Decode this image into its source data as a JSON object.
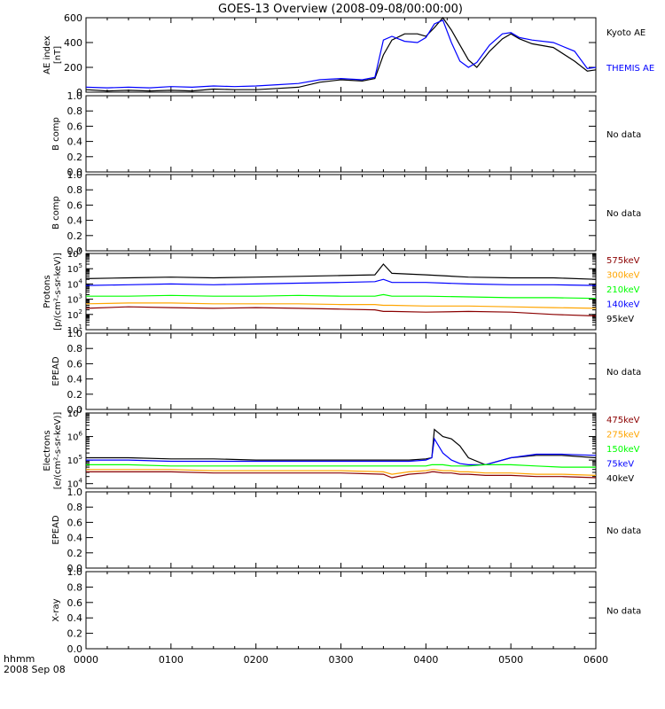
{
  "title": "GOES-13 Overview (2008-09-08/00:00:00)",
  "time_axis": {
    "ticks": [
      "0000",
      "0100",
      "0200",
      "0300",
      "0400",
      "0500",
      "0600"
    ],
    "label_line1": "hhmm",
    "label_line2": "2008 Sep 08"
  },
  "no_data_text": "No data",
  "colors": {
    "black": "#000000",
    "blue": "#0000ff",
    "green": "#00ff00",
    "orange": "#ffa500",
    "darkred": "#8b0000"
  },
  "chart_data": [
    {
      "type": "line",
      "id": "ae",
      "ylabel_lines": [
        "AE index",
        "[nT]"
      ],
      "ylim": [
        0,
        600
      ],
      "yticks": [
        "0",
        "200",
        "400",
        "600"
      ],
      "x_hours": [
        0,
        0.25,
        0.5,
        0.75,
        1.0,
        1.25,
        1.5,
        1.75,
        2.0,
        2.25,
        2.5,
        2.75,
        3.0,
        3.25,
        3.4,
        3.5,
        3.6,
        3.75,
        3.9,
        4.0,
        4.1,
        4.2,
        4.3,
        4.4,
        4.5,
        4.6,
        4.75,
        4.9,
        5.0,
        5.1,
        5.25,
        5.5,
        5.75,
        5.9,
        6.0
      ],
      "series": [
        {
          "name": "Kyoto AE",
          "color": "black",
          "values": [
            20,
            10,
            15,
            10,
            15,
            10,
            25,
            20,
            20,
            30,
            40,
            80,
            100,
            90,
            110,
            300,
            420,
            470,
            470,
            450,
            520,
            600,
            500,
            380,
            260,
            200,
            330,
            430,
            470,
            430,
            390,
            360,
            250,
            170,
            180
          ]
        },
        {
          "name": "THEMIS AE",
          "color": "blue",
          "values": [
            40,
            35,
            40,
            35,
            45,
            40,
            50,
            45,
            50,
            60,
            70,
            100,
            110,
            100,
            120,
            420,
            450,
            410,
            400,
            440,
            550,
            580,
            400,
            250,
            200,
            240,
            380,
            470,
            480,
            440,
            420,
            400,
            330,
            190,
            200
          ]
        }
      ],
      "legend_labels": [
        {
          "text": "Kyoto AE",
          "color": "black"
        },
        {
          "text": "THEMIS AE",
          "color": "blue"
        }
      ]
    },
    {
      "type": "line",
      "id": "bcomp1",
      "ylabel_lines": [
        "B comp"
      ],
      "ylim": [
        0,
        1
      ],
      "yticks": [
        "0.0",
        "0.2",
        "0.4",
        "0.6",
        "0.8",
        "1.0"
      ],
      "series": [],
      "no_data": true
    },
    {
      "type": "line",
      "id": "bcomp2",
      "ylabel_lines": [
        "B comp"
      ],
      "ylim": [
        0,
        1
      ],
      "yticks": [
        "0.0",
        "0.2",
        "0.4",
        "0.6",
        "0.8",
        "1.0"
      ],
      "series": [],
      "no_data": true
    },
    {
      "type": "line",
      "id": "protons",
      "log": true,
      "ylabel_lines": [
        "Protons",
        "[p/(cm²-s-sr-keV)]"
      ],
      "ylim_exp": [
        1,
        6
      ],
      "yticks_exp": [
        1,
        2,
        3,
        4,
        5,
        6
      ],
      "x_hours": [
        0,
        0.5,
        1.0,
        1.5,
        2.0,
        2.5,
        3.0,
        3.4,
        3.5,
        3.6,
        4.0,
        4.5,
        5.0,
        5.5,
        6.0
      ],
      "series": [
        {
          "name": "95keV",
          "color": "black",
          "values_exp": [
            4.35,
            4.4,
            4.45,
            4.4,
            4.45,
            4.5,
            4.55,
            4.6,
            5.3,
            4.7,
            4.6,
            4.45,
            4.4,
            4.4,
            4.3
          ]
        },
        {
          "name": "140keV",
          "color": "blue",
          "values_exp": [
            3.9,
            3.95,
            4.0,
            3.95,
            4.0,
            4.05,
            4.1,
            4.15,
            4.3,
            4.1,
            4.1,
            4.0,
            3.95,
            3.95,
            3.9
          ]
        },
        {
          "name": "210keV",
          "color": "green",
          "values_exp": [
            3.2,
            3.2,
            3.25,
            3.2,
            3.2,
            3.25,
            3.2,
            3.2,
            3.3,
            3.2,
            3.2,
            3.15,
            3.1,
            3.1,
            3.05
          ]
        },
        {
          "name": "300keV",
          "color": "orange",
          "values_exp": [
            2.7,
            2.75,
            2.75,
            2.7,
            2.7,
            2.7,
            2.65,
            2.65,
            2.6,
            2.6,
            2.55,
            2.55,
            2.5,
            2.45,
            2.4
          ]
        },
        {
          "name": "575keV",
          "color": "darkred",
          "values_exp": [
            2.4,
            2.5,
            2.45,
            2.4,
            2.45,
            2.4,
            2.35,
            2.3,
            2.2,
            2.2,
            2.15,
            2.2,
            2.15,
            2.0,
            1.9
          ]
        }
      ],
      "legend_labels": [
        {
          "text": "575keV",
          "color": "darkred"
        },
        {
          "text": "300keV",
          "color": "orange"
        },
        {
          "text": "210keV",
          "color": "green"
        },
        {
          "text": "140keV",
          "color": "blue"
        },
        {
          "text": "95keV",
          "color": "black"
        }
      ]
    },
    {
      "type": "line",
      "id": "epead1",
      "ylabel_lines": [
        "EPEAD"
      ],
      "ylim": [
        0,
        1
      ],
      "yticks": [
        "0.0",
        "0.2",
        "0.4",
        "0.6",
        "0.8",
        "1.0"
      ],
      "series": [],
      "no_data": true
    },
    {
      "type": "line",
      "id": "electrons",
      "log": true,
      "ylabel_lines": [
        "Electrons",
        "[e/(cm²-s-sr-keV)]"
      ],
      "ylim_exp": [
        3.8,
        7
      ],
      "yticks_exp": [
        4,
        5,
        6,
        7
      ],
      "x_hours": [
        0,
        0.5,
        1.0,
        1.5,
        2.0,
        2.5,
        3.0,
        3.5,
        3.6,
        3.8,
        4.0,
        4.07,
        4.1,
        4.2,
        4.3,
        4.4,
        4.5,
        4.7,
        5.0,
        5.3,
        5.6,
        6.0
      ],
      "series": [
        {
          "name": "40keV",
          "color": "black",
          "values_exp": [
            5.1,
            5.1,
            5.05,
            5.05,
            5.0,
            5.0,
            5.0,
            5.0,
            5.0,
            5.0,
            5.05,
            5.1,
            6.3,
            6.0,
            5.9,
            5.6,
            5.1,
            4.8,
            5.1,
            5.2,
            5.2,
            5.1
          ]
        },
        {
          "name": "75keV",
          "color": "blue",
          "values_exp": [
            5.0,
            5.0,
            4.95,
            4.95,
            4.95,
            4.95,
            4.95,
            4.95,
            4.95,
            4.95,
            5.0,
            5.1,
            5.9,
            5.3,
            5.0,
            4.85,
            4.8,
            4.8,
            5.1,
            5.25,
            5.25,
            5.2
          ]
        },
        {
          "name": "150keV",
          "color": "green",
          "values_exp": [
            4.8,
            4.8,
            4.75,
            4.75,
            4.75,
            4.75,
            4.75,
            4.75,
            4.75,
            4.75,
            4.75,
            4.8,
            4.8,
            4.8,
            4.75,
            4.75,
            4.75,
            4.8,
            4.8,
            4.75,
            4.7,
            4.7
          ]
        },
        {
          "name": "275keV",
          "color": "orange",
          "values_exp": [
            4.6,
            4.6,
            4.6,
            4.55,
            4.55,
            4.55,
            4.55,
            4.5,
            4.4,
            4.5,
            4.55,
            4.6,
            4.6,
            4.55,
            4.55,
            4.5,
            4.5,
            4.45,
            4.45,
            4.4,
            4.4,
            4.35
          ]
        },
        {
          "name": "475keV",
          "color": "darkred",
          "values_exp": [
            4.5,
            4.5,
            4.5,
            4.45,
            4.45,
            4.45,
            4.45,
            4.4,
            4.25,
            4.4,
            4.45,
            4.5,
            4.5,
            4.45,
            4.45,
            4.4,
            4.4,
            4.35,
            4.35,
            4.3,
            4.3,
            4.25
          ]
        }
      ],
      "legend_labels": [
        {
          "text": "475keV",
          "color": "darkred"
        },
        {
          "text": "275keV",
          "color": "orange"
        },
        {
          "text": "150keV",
          "color": "green"
        },
        {
          "text": "75keV",
          "color": "blue"
        },
        {
          "text": "40keV",
          "color": "black"
        }
      ]
    },
    {
      "type": "line",
      "id": "epead2",
      "ylabel_lines": [
        "EPEAD"
      ],
      "ylim": [
        0,
        1
      ],
      "yticks": [
        "0.0",
        "0.2",
        "0.4",
        "0.6",
        "0.8",
        "1.0"
      ],
      "series": [],
      "no_data": true
    },
    {
      "type": "line",
      "id": "xray",
      "ylabel_lines": [
        "X-ray"
      ],
      "ylim": [
        0,
        1
      ],
      "yticks": [
        "0.0",
        "0.2",
        "0.4",
        "0.6",
        "0.8",
        "1.0"
      ],
      "series": [],
      "no_data": true
    }
  ]
}
